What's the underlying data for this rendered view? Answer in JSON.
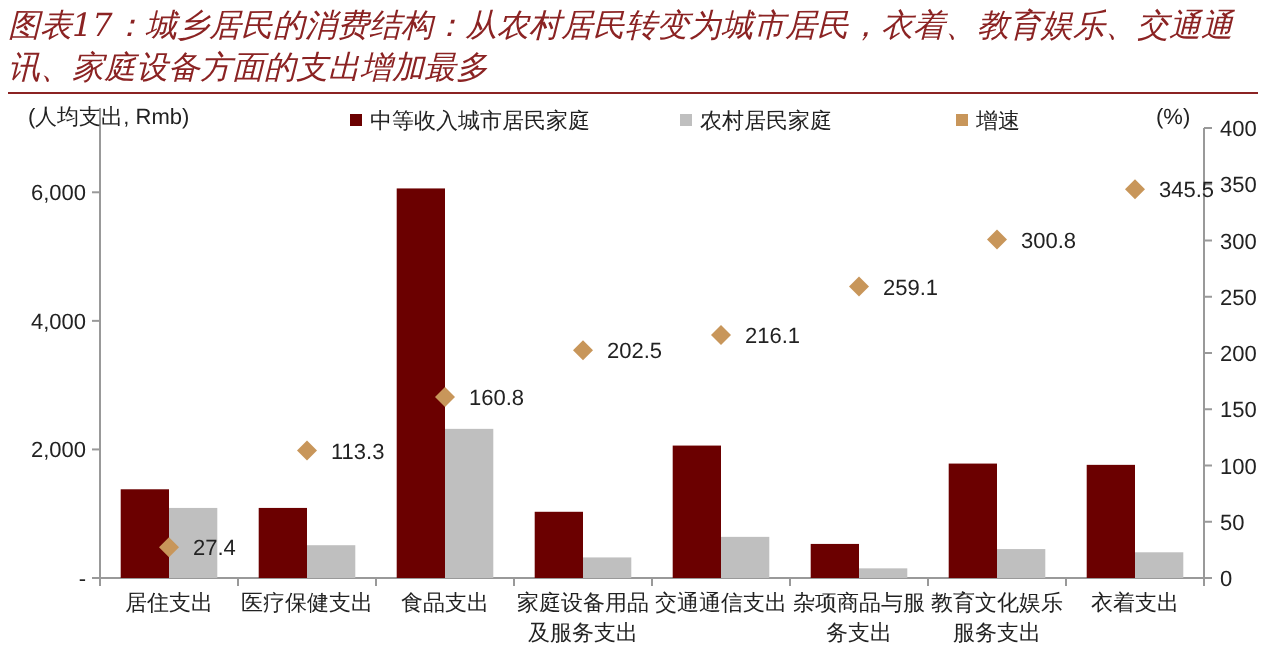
{
  "chart_data": {
    "type": "bar",
    "title": "图表17：城乡居民的消费结构：从农村居民转变为城市居民，衣着、教育娱乐、交通通讯、家庭设备方面的支出增加最多",
    "ylabel": "(人均支出, Rmb)",
    "y2label": "(%)",
    "categories": [
      "居住支出",
      "医疗保健支出",
      "食品支出",
      "家庭设备用品及服务支出",
      "交通通信支出",
      "杂项商品与服务支出",
      "教育文化娱乐服务支出",
      "衣着支出"
    ],
    "series": [
      {
        "name": "中等收入城市居民家庭",
        "color": "#6b0000",
        "values": [
          1380,
          1090,
          6060,
          1030,
          2060,
          530,
          1780,
          1760
        ]
      },
      {
        "name": "农村居民家庭",
        "color": "#bfbfbf",
        "values": [
          1090,
          510,
          2320,
          320,
          640,
          150,
          450,
          400
        ]
      },
      {
        "name": "增速",
        "type": "scatter",
        "axis": "y2",
        "color": "#c8965a",
        "marker": "diamond",
        "values": [
          27.4,
          113.3,
          160.8,
          202.5,
          216.1,
          259.1,
          300.8,
          345.5
        ],
        "value_labels": [
          "27.4",
          "113.3",
          "160.8",
          "202.5",
          "216.1",
          "259.1",
          "300.8",
          "345.5"
        ]
      }
    ],
    "ylim": [
      0,
      7000
    ],
    "yticks": [
      {
        "value": 0,
        "label": "-"
      },
      {
        "value": 2000,
        "label": "2,000"
      },
      {
        "value": 4000,
        "label": "4,000"
      },
      {
        "value": 6000,
        "label": "6,000"
      }
    ],
    "y2lim": [
      0,
      400
    ],
    "y2ticks": [
      0,
      50,
      100,
      150,
      200,
      250,
      300,
      350,
      400
    ],
    "grid": false,
    "legend": "top"
  }
}
